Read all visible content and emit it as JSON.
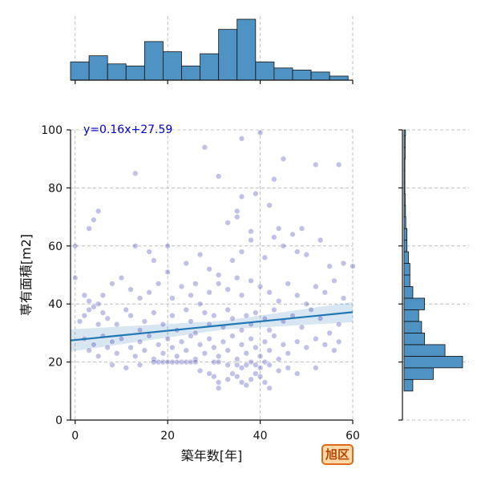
{
  "badge": {
    "label": "旭区",
    "bg_color": "#ffd9a8",
    "border_color": "#e06a1c",
    "text_color": "#b34700"
  },
  "chart_data": {
    "type": "scatter",
    "xlabel": "築年数[年]",
    "ylabel": "専有面積[m2]",
    "xlim": [
      -1,
      60
    ],
    "ylim": [
      0,
      100
    ],
    "xticks": [
      0,
      20,
      40,
      60
    ],
    "yticks": [
      0,
      20,
      40,
      60,
      80,
      100
    ],
    "grid": true,
    "regression": {
      "label": "y=0.16x+27.59",
      "slope": 0.16,
      "intercept": 27.59,
      "color": "#1f77b4"
    },
    "point_color": "#2222aa",
    "points": [
      [
        28,
        94
      ],
      [
        36,
        97
      ],
      [
        40,
        99
      ],
      [
        45,
        90
      ],
      [
        13,
        85
      ],
      [
        31,
        84
      ],
      [
        43,
        83
      ],
      [
        52,
        88
      ],
      [
        57,
        88
      ],
      [
        5,
        72
      ],
      [
        4,
        69
      ],
      [
        3,
        66
      ],
      [
        35,
        72
      ],
      [
        35,
        70
      ],
      [
        42,
        74
      ],
      [
        36,
        77
      ],
      [
        39,
        78
      ],
      [
        33,
        68
      ],
      [
        38,
        65
      ],
      [
        44,
        66
      ],
      [
        47,
        64
      ],
      [
        49,
        66
      ],
      [
        53,
        62
      ],
      [
        0,
        60
      ],
      [
        0,
        49
      ],
      [
        13,
        60
      ],
      [
        16,
        58
      ],
      [
        17,
        55
      ],
      [
        20,
        60
      ],
      [
        20,
        51
      ],
      [
        24,
        54
      ],
      [
        27,
        57
      ],
      [
        29,
        52
      ],
      [
        31,
        50
      ],
      [
        34,
        55
      ],
      [
        36,
        58
      ],
      [
        38,
        62
      ],
      [
        41,
        56
      ],
      [
        43,
        63
      ],
      [
        45,
        60
      ],
      [
        48,
        58
      ],
      [
        50,
        57
      ],
      [
        55,
        53
      ],
      [
        58,
        54
      ],
      [
        60,
        53
      ],
      [
        2,
        43
      ],
      [
        3,
        41
      ],
      [
        4,
        39
      ],
      [
        5,
        40
      ],
      [
        6,
        43
      ],
      [
        8,
        47
      ],
      [
        10,
        49
      ],
      [
        12,
        45
      ],
      [
        14,
        42
      ],
      [
        16,
        44
      ],
      [
        18,
        47
      ],
      [
        21,
        42
      ],
      [
        23,
        46
      ],
      [
        25,
        43
      ],
      [
        26,
        47
      ],
      [
        27,
        40
      ],
      [
        29,
        44
      ],
      [
        31,
        47
      ],
      [
        33,
        45
      ],
      [
        35,
        49
      ],
      [
        36,
        43
      ],
      [
        38,
        48
      ],
      [
        40,
        46
      ],
      [
        42,
        44
      ],
      [
        44,
        41
      ],
      [
        46,
        47
      ],
      [
        48,
        43
      ],
      [
        50,
        40
      ],
      [
        52,
        46
      ],
      [
        54,
        44
      ],
      [
        56,
        48
      ],
      [
        58,
        42
      ],
      [
        1,
        34
      ],
      [
        2,
        36
      ],
      [
        3,
        38
      ],
      [
        5,
        33
      ],
      [
        6,
        37
      ],
      [
        7,
        35
      ],
      [
        9,
        33
      ],
      [
        11,
        38
      ],
      [
        12,
        36
      ],
      [
        14,
        31
      ],
      [
        15,
        34
      ],
      [
        17,
        37
      ],
      [
        19,
        33
      ],
      [
        21,
        36
      ],
      [
        22,
        31
      ],
      [
        24,
        38
      ],
      [
        25,
        34
      ],
      [
        26,
        30
      ],
      [
        28,
        37
      ],
      [
        29,
        33
      ],
      [
        30,
        36
      ],
      [
        32,
        32
      ],
      [
        33,
        38
      ],
      [
        34,
        35
      ],
      [
        36,
        31
      ],
      [
        37,
        36
      ],
      [
        38,
        33
      ],
      [
        39,
        37
      ],
      [
        41,
        35
      ],
      [
        42,
        31
      ],
      [
        43,
        38
      ],
      [
        45,
        34
      ],
      [
        47,
        36
      ],
      [
        49,
        32
      ],
      [
        51,
        38
      ],
      [
        53,
        35
      ],
      [
        55,
        30
      ],
      [
        57,
        33
      ],
      [
        2,
        28
      ],
      [
        3,
        24
      ],
      [
        4,
        26
      ],
      [
        5,
        22
      ],
      [
        6,
        29
      ],
      [
        7,
        25
      ],
      [
        8,
        27
      ],
      [
        9,
        23
      ],
      [
        10,
        28
      ],
      [
        12,
        25
      ],
      [
        13,
        22
      ],
      [
        14,
        27
      ],
      [
        15,
        24
      ],
      [
        16,
        29
      ],
      [
        17,
        21
      ],
      [
        18,
        26
      ],
      [
        19,
        23
      ],
      [
        20,
        28
      ],
      [
        21,
        25
      ],
      [
        22,
        22
      ],
      [
        23,
        27
      ],
      [
        24,
        24
      ],
      [
        25,
        29
      ],
      [
        26,
        21
      ],
      [
        27,
        26
      ],
      [
        28,
        23
      ],
      [
        29,
        28
      ],
      [
        30,
        25
      ],
      [
        31,
        22
      ],
      [
        32,
        27
      ],
      [
        33,
        24
      ],
      [
        34,
        29
      ],
      [
        35,
        21
      ],
      [
        36,
        26
      ],
      [
        37,
        23
      ],
      [
        38,
        28
      ],
      [
        39,
        25
      ],
      [
        40,
        22
      ],
      [
        41,
        27
      ],
      [
        42,
        24
      ],
      [
        43,
        29
      ],
      [
        44,
        21
      ],
      [
        45,
        26
      ],
      [
        46,
        23
      ],
      [
        48,
        27
      ],
      [
        50,
        25
      ],
      [
        52,
        28
      ],
      [
        54,
        26
      ],
      [
        56,
        24
      ],
      [
        57,
        27
      ],
      [
        17,
        20
      ],
      [
        18,
        20
      ],
      [
        19,
        20
      ],
      [
        20,
        20
      ],
      [
        21,
        20
      ],
      [
        22,
        20
      ],
      [
        23,
        20
      ],
      [
        24,
        20
      ],
      [
        25,
        20
      ],
      [
        26,
        20
      ],
      [
        30,
        20
      ],
      [
        31,
        20
      ],
      [
        33,
        19
      ],
      [
        35,
        19
      ],
      [
        36,
        18
      ],
      [
        37,
        19
      ],
      [
        38,
        20
      ],
      [
        39,
        19
      ],
      [
        40,
        18
      ],
      [
        41,
        20
      ],
      [
        42,
        19
      ],
      [
        8,
        19
      ],
      [
        11,
        18
      ],
      [
        14,
        19
      ],
      [
        27,
        17
      ],
      [
        29,
        16
      ],
      [
        30,
        15
      ],
      [
        31,
        13
      ],
      [
        31,
        11
      ],
      [
        33,
        14
      ],
      [
        34,
        16
      ],
      [
        35,
        15
      ],
      [
        36,
        13
      ],
      [
        37,
        12
      ],
      [
        38,
        14
      ],
      [
        39,
        16
      ],
      [
        40,
        15
      ],
      [
        41,
        13
      ],
      [
        42,
        11
      ],
      [
        44,
        17
      ],
      [
        46,
        18
      ],
      [
        48,
        16
      ],
      [
        52,
        18
      ]
    ],
    "marginal_x": {
      "bin_edges": [
        -1,
        3,
        7,
        11,
        15,
        19,
        23,
        27,
        31,
        35,
        39,
        43,
        47,
        51,
        55,
        59,
        60
      ],
      "values": [
        9,
        12,
        8,
        7,
        19,
        14,
        7,
        13,
        25,
        30,
        9,
        6,
        5,
        4,
        2,
        0
      ]
    },
    "marginal_y": {
      "bin_edges": [
        10,
        14,
        18,
        22,
        26,
        30,
        34,
        38,
        42,
        46,
        50,
        54,
        58,
        62,
        66,
        70,
        74,
        78,
        82,
        86,
        90,
        94,
        98,
        100
      ],
      "values": [
        3,
        10,
        20,
        14,
        7,
        6,
        5,
        7,
        3,
        2,
        2,
        1.5,
        1,
        1,
        0.6,
        0.5,
        0.4,
        0.3,
        0.3,
        0.3,
        0.4,
        0.4,
        0.5
      ]
    }
  }
}
